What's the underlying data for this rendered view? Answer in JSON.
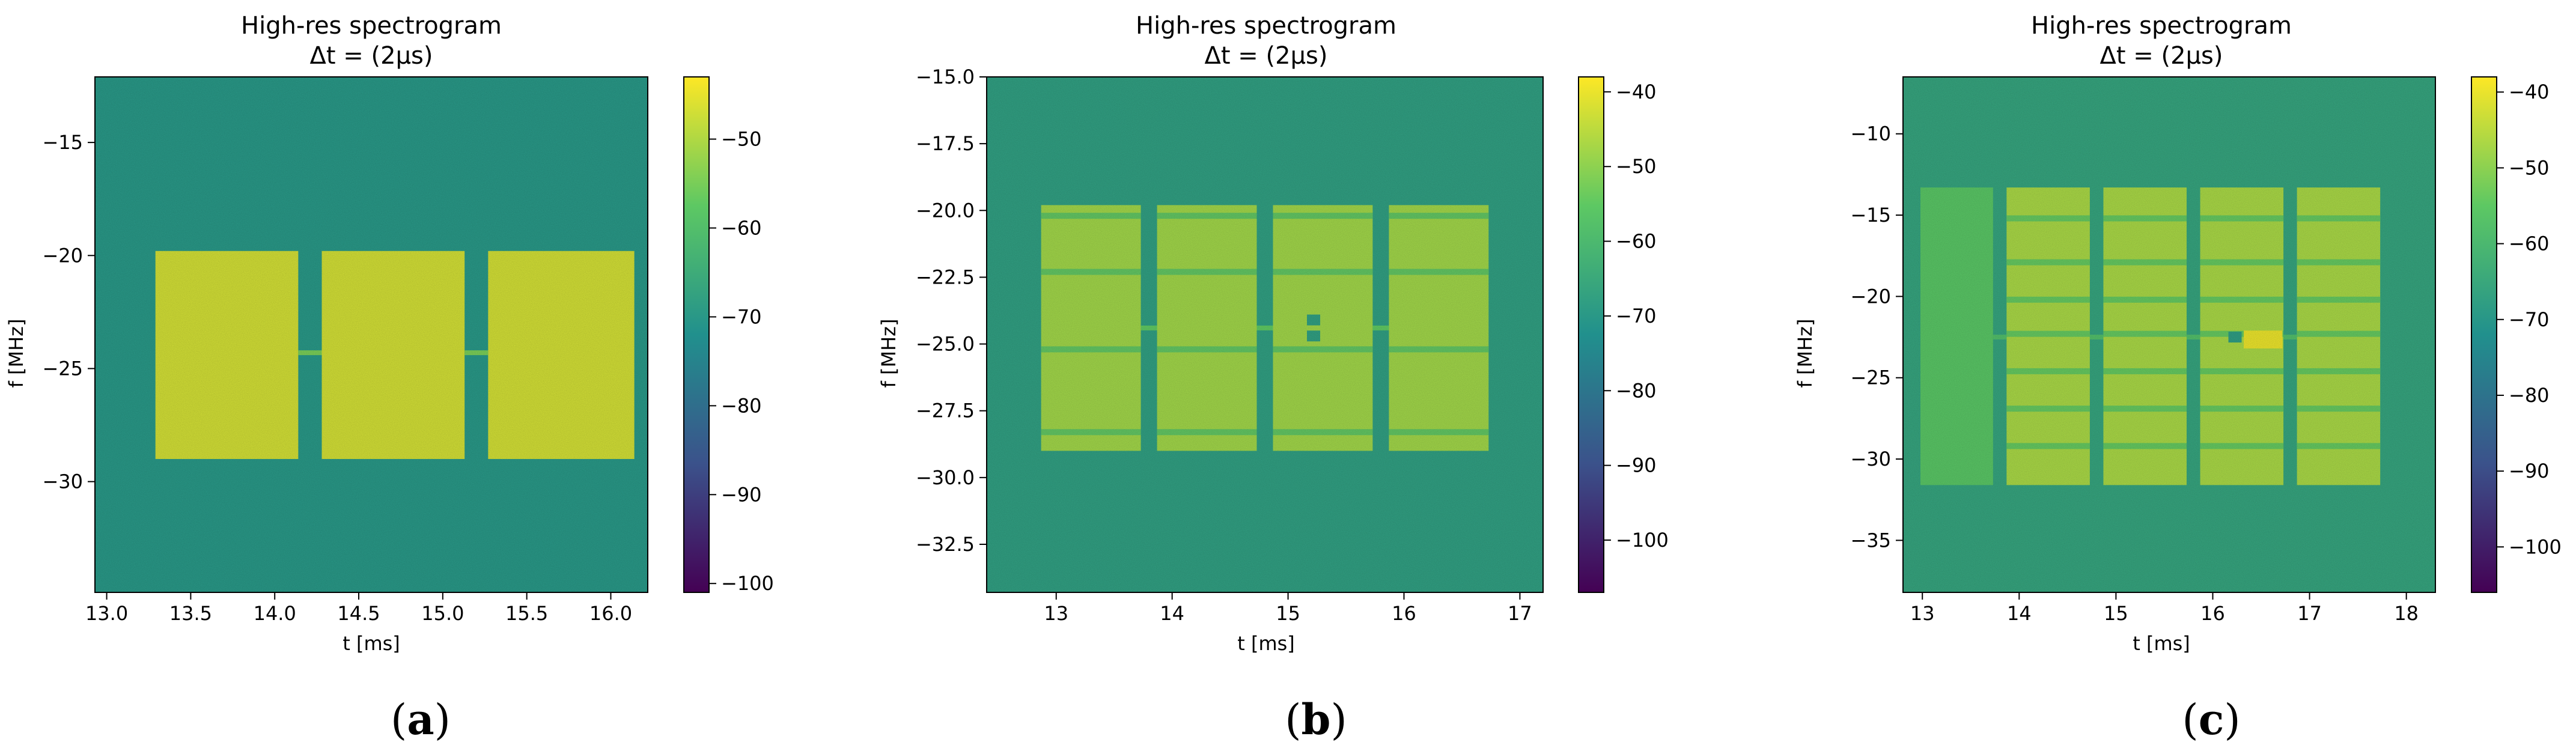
{
  "panels": [
    {
      "letter": "a",
      "title": "High-res spectrogram",
      "subtitle": "Δt = (2μs)",
      "xlabel": "t [ms]",
      "ylabel": "f [MHz]"
    },
    {
      "letter": "b",
      "title": "High-res spectrogram",
      "subtitle": "Δt = (2μs)",
      "xlabel": "t [ms]",
      "ylabel": "f [MHz]"
    },
    {
      "letter": "c",
      "title": "High-res spectrogram",
      "subtitle": "Δt = (2μs)",
      "xlabel": "t [ms]",
      "ylabel": "f [MHz]"
    }
  ],
  "chart_data": [
    {
      "type": "heatmap",
      "title": "High-res spectrogram",
      "subtitle": "Δt = (2μs)",
      "xlabel": "t [ms]",
      "ylabel": "f [MHz]",
      "xlim": [
        12.93,
        16.22
      ],
      "ylim": [
        -34.9,
        -12.1
      ],
      "xticks": [
        13.0,
        13.5,
        14.0,
        14.5,
        15.0,
        15.5,
        16.0
      ],
      "xtick_labels": [
        "13.0",
        "13.5",
        "14.0",
        "14.5",
        "15.0",
        "15.5",
        "16.0"
      ],
      "yticks": [
        -15,
        -20,
        -25,
        -30
      ],
      "ytick_labels": [
        "−15",
        "−20",
        "−25",
        "−30"
      ],
      "colorbar": {
        "min": -101,
        "max": -43,
        "ticks": [
          -50,
          -60,
          -70,
          -80,
          -90,
          -100
        ],
        "tick_labels": [
          "−50",
          "−60",
          "−70",
          "−80",
          "−90",
          "−100"
        ]
      },
      "colormap": [
        "#440154",
        "#3b528b",
        "#21908d",
        "#5dc863",
        "#fde725"
      ],
      "background_level": -70,
      "blocks": [
        {
          "t_start": 13.29,
          "t_end": 14.14,
          "f_low": -29.0,
          "f_high": -19.8,
          "level": -47
        },
        {
          "t_start": 14.28,
          "t_end": 15.13,
          "f_low": -29.0,
          "f_high": -19.8,
          "level": -47
        },
        {
          "t_start": 15.27,
          "t_end": 16.14,
          "f_low": -29.0,
          "f_high": -19.8,
          "level": -47
        }
      ],
      "stripes": [],
      "connectors": [
        {
          "t_start": 14.14,
          "t_end": 14.28,
          "f": -24.3,
          "level": -55
        },
        {
          "t_start": 15.13,
          "t_end": 15.27,
          "f": -24.3,
          "level": -55
        }
      ],
      "markers": []
    },
    {
      "type": "heatmap",
      "title": "High-res spectrogram",
      "subtitle": "Δt = (2μs)",
      "xlabel": "t [ms]",
      "ylabel": "f [MHz]",
      "xlim": [
        12.4,
        17.2
      ],
      "ylim": [
        -34.3,
        -15.0
      ],
      "xticks": [
        13,
        14,
        15,
        16,
        17
      ],
      "xtick_labels": [
        "13",
        "14",
        "15",
        "16",
        "17"
      ],
      "yticks": [
        -15.0,
        -17.5,
        -20.0,
        -22.5,
        -25.0,
        -27.5,
        -30.0,
        -32.5
      ],
      "ytick_labels": [
        "−15.0",
        "−17.5",
        "−20.0",
        "−22.5",
        "−25.0",
        "−27.5",
        "−30.0",
        "−32.5"
      ],
      "colorbar": {
        "min": -107,
        "max": -38,
        "ticks": [
          -40,
          -50,
          -60,
          -70,
          -80,
          -90,
          -100
        ],
        "tick_labels": [
          "−40",
          "−50",
          "−60",
          "−70",
          "−80",
          "−90",
          "−100"
        ]
      },
      "colormap": [
        "#440154",
        "#3b528b",
        "#21908d",
        "#5dc863",
        "#fde725"
      ],
      "background_level": -68,
      "blocks": [
        {
          "t_start": 12.87,
          "t_end": 13.73,
          "f_low": -29.0,
          "f_high": -19.8,
          "level": -48
        },
        {
          "t_start": 13.87,
          "t_end": 14.73,
          "f_low": -29.0,
          "f_high": -19.8,
          "level": -48
        },
        {
          "t_start": 14.87,
          "t_end": 15.73,
          "f_low": -29.0,
          "f_high": -19.8,
          "level": -48
        },
        {
          "t_start": 15.87,
          "t_end": 16.73,
          "f_low": -29.0,
          "f_high": -19.8,
          "level": -48
        }
      ],
      "stripes": [
        -20.2,
        -22.3,
        -25.2,
        -28.3
      ],
      "connectors": [
        {
          "t_start": 13.73,
          "t_end": 13.87,
          "f": -24.4,
          "level": -55
        },
        {
          "t_start": 14.73,
          "t_end": 14.87,
          "f": -24.4,
          "level": -55
        },
        {
          "t_start": 15.73,
          "t_end": 15.87,
          "f": -24.4,
          "level": -55
        }
      ],
      "markers": [
        {
          "t": 15.22,
          "f": -24.1,
          "level": -68
        },
        {
          "t": 15.22,
          "f": -24.7,
          "level": -68
        }
      ]
    },
    {
      "type": "heatmap",
      "title": "High-res spectrogram",
      "subtitle": "Δt = (2μs)",
      "xlabel": "t [ms]",
      "ylabel": "f [MHz]",
      "xlim": [
        12.8,
        18.3
      ],
      "ylim": [
        -38.2,
        -6.5
      ],
      "xticks": [
        13,
        14,
        15,
        16,
        17,
        18
      ],
      "xtick_labels": [
        "13",
        "14",
        "15",
        "16",
        "17",
        "18"
      ],
      "yticks": [
        -10,
        -15,
        -20,
        -25,
        -30,
        -35
      ],
      "ytick_labels": [
        "−10",
        "−15",
        "−20",
        "−25",
        "−30",
        "−35"
      ],
      "colorbar": {
        "min": -106,
        "max": -38,
        "ticks": [
          -40,
          -50,
          -60,
          -70,
          -80,
          -90,
          -100
        ],
        "tick_labels": [
          "−40",
          "−50",
          "−60",
          "−70",
          "−80",
          "−90",
          "−100"
        ]
      },
      "colormap": [
        "#440154",
        "#3b528b",
        "#21908d",
        "#5dc863",
        "#fde725"
      ],
      "background_level": -66,
      "blocks": [
        {
          "t_start": 12.98,
          "t_end": 13.73,
          "f_low": -31.6,
          "f_high": -13.3,
          "level": -56
        },
        {
          "t_start": 13.87,
          "t_end": 14.73,
          "f_low": -31.6,
          "f_high": -13.3,
          "level": -47
        },
        {
          "t_start": 14.87,
          "t_end": 15.73,
          "f_low": -31.6,
          "f_high": -13.3,
          "level": -47
        },
        {
          "t_start": 15.87,
          "t_end": 16.73,
          "f_low": -31.6,
          "f_high": -13.3,
          "level": -47
        },
        {
          "t_start": 16.87,
          "t_end": 17.73,
          "f_low": -31.6,
          "f_high": -13.3,
          "level": -47
        }
      ],
      "stripes": [
        -15.2,
        -17.9,
        -20.2,
        -22.3,
        -24.6,
        -26.9,
        -29.2
      ],
      "stripe_blocks": [
        1,
        2,
        3,
        4
      ],
      "connectors": [
        {
          "t_start": 13.73,
          "t_end": 13.87,
          "f": -22.5,
          "level": -58
        },
        {
          "t_start": 14.73,
          "t_end": 14.87,
          "f": -22.5,
          "level": -58
        },
        {
          "t_start": 15.73,
          "t_end": 15.87,
          "f": -22.5,
          "level": -58
        },
        {
          "t_start": 16.73,
          "t_end": 16.87,
          "f": -22.5,
          "level": -58
        }
      ],
      "markers": [
        {
          "t": 16.23,
          "f": -22.5,
          "level": -68
        }
      ],
      "highlight": {
        "t_start": 16.32,
        "t_end": 16.72,
        "f_low": -23.2,
        "f_high": -22.1,
        "level": -40
      }
    }
  ]
}
